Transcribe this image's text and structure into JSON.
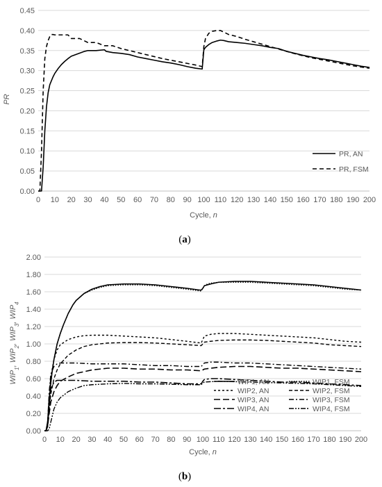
{
  "chart_data": [
    {
      "panel_label": "(a)",
      "type": "line",
      "xlabel": "Cycle, n",
      "ylabel": "PR",
      "xlim": [
        0,
        200
      ],
      "ylim": [
        0,
        0.45
      ],
      "xticks": [
        0,
        10,
        20,
        30,
        40,
        50,
        60,
        70,
        80,
        90,
        100,
        110,
        120,
        130,
        140,
        150,
        160,
        170,
        180,
        190,
        200
      ],
      "xtick_labels": [
        "0",
        "10",
        "20",
        "30",
        "40",
        "50",
        "60",
        "70",
        "80",
        "90",
        "100",
        "110",
        "120",
        "130",
        "140",
        "150",
        "160",
        "170",
        "180",
        "190",
        "200"
      ],
      "yticks": [
        0,
        0.05,
        0.1,
        0.15,
        0.2,
        0.25,
        0.3,
        0.35,
        0.4,
        0.45
      ],
      "ytick_labels": [
        "0.00",
        "0.05",
        "0.10",
        "0.15",
        "0.20",
        "0.25",
        "0.30",
        "0.35",
        "0.40",
        "0.45"
      ],
      "grid": "horizontal",
      "legend_position": "bottom-right",
      "series": [
        {
          "name": "PR, AN",
          "style": "solid",
          "x": [
            0,
            1,
            2,
            3,
            4,
            5,
            6,
            7,
            8,
            9,
            10,
            12,
            14,
            16,
            18,
            20,
            22,
            24,
            26,
            28,
            30,
            35,
            40,
            41,
            45,
            50,
            55,
            60,
            65,
            70,
            75,
            80,
            85,
            90,
            95,
            99,
            100,
            101,
            103,
            105,
            108,
            110,
            112,
            115,
            120,
            125,
            130,
            135,
            140,
            145,
            150,
            155,
            160,
            165,
            170,
            175,
            180,
            185,
            190,
            195,
            200
          ],
          "y": [
            0,
            0,
            0,
            0.06,
            0.15,
            0.21,
            0.245,
            0.265,
            0.275,
            0.285,
            0.293,
            0.305,
            0.315,
            0.323,
            0.33,
            0.336,
            0.339,
            0.342,
            0.345,
            0.348,
            0.35,
            0.35,
            0.352,
            0.348,
            0.345,
            0.343,
            0.34,
            0.334,
            0.33,
            0.326,
            0.322,
            0.319,
            0.315,
            0.31,
            0.306,
            0.304,
            0.352,
            0.358,
            0.365,
            0.37,
            0.374,
            0.376,
            0.375,
            0.372,
            0.37,
            0.368,
            0.365,
            0.362,
            0.358,
            0.355,
            0.348,
            0.343,
            0.338,
            0.334,
            0.33,
            0.327,
            0.323,
            0.319,
            0.315,
            0.311,
            0.308
          ]
        },
        {
          "name": "PR, FSM",
          "style": "dashed",
          "x": [
            0,
            1,
            2,
            3,
            4,
            5,
            6,
            7,
            8,
            9,
            10,
            12,
            14,
            16,
            18,
            20,
            25,
            30,
            35,
            40,
            45,
            50,
            55,
            60,
            65,
            70,
            75,
            80,
            85,
            90,
            95,
            99,
            100,
            101,
            103,
            105,
            108,
            110,
            115,
            120,
            125,
            130,
            135,
            140,
            145,
            150,
            155,
            160,
            165,
            170,
            175,
            180,
            185,
            190,
            195,
            200
          ],
          "y": [
            0,
            0,
            0.1,
            0.25,
            0.33,
            0.36,
            0.375,
            0.385,
            0.39,
            0.39,
            0.389,
            0.389,
            0.389,
            0.389,
            0.389,
            0.38,
            0.38,
            0.37,
            0.37,
            0.362,
            0.362,
            0.355,
            0.35,
            0.345,
            0.34,
            0.335,
            0.33,
            0.326,
            0.322,
            0.318,
            0.314,
            0.31,
            0.36,
            0.38,
            0.393,
            0.398,
            0.4,
            0.4,
            0.39,
            0.385,
            0.378,
            0.372,
            0.366,
            0.36,
            0.354,
            0.348,
            0.342,
            0.337,
            0.332,
            0.328,
            0.324,
            0.32,
            0.316,
            0.312,
            0.309,
            0.306
          ]
        }
      ]
    },
    {
      "panel_label": "(b)",
      "type": "line",
      "xlabel": "Cycle, n",
      "ylabel_parts": [
        "WIP",
        "1",
        ", WIP",
        "2",
        ", WIP",
        "3",
        ", WIP",
        "4"
      ],
      "xlim": [
        0,
        200
      ],
      "ylim": [
        0,
        2.0
      ],
      "xticks": [
        0,
        10,
        20,
        30,
        40,
        50,
        60,
        70,
        80,
        90,
        100,
        110,
        120,
        130,
        140,
        150,
        160,
        170,
        180,
        190,
        200
      ],
      "xtick_labels": [
        "0",
        "10",
        "20",
        "30",
        "40",
        "50",
        "60",
        "70",
        "80",
        "90",
        "100",
        "110",
        "120",
        "130",
        "140",
        "150",
        "160",
        "170",
        "180",
        "190",
        "200"
      ],
      "yticks": [
        0,
        0.2,
        0.4,
        0.6,
        0.8,
        1.0,
        1.2,
        1.4,
        1.6,
        1.8,
        2.0
      ],
      "ytick_labels": [
        "0.00",
        "0.20",
        "0.40",
        "0.60",
        "0.80",
        "1.00",
        "1.20",
        "1.40",
        "1.60",
        "1.80",
        "2.00"
      ],
      "grid": "horizontal",
      "legend_position": "bottom-right",
      "series": [
        {
          "name": "WIP1, AN",
          "style": "solid",
          "x": [
            0,
            1,
            2,
            3,
            4,
            5,
            6,
            8,
            10,
            12,
            15,
            18,
            20,
            25,
            30,
            35,
            40,
            50,
            60,
            70,
            80,
            90,
            98,
            99,
            100,
            101,
            103,
            105,
            110,
            120,
            130,
            140,
            150,
            160,
            170,
            180,
            190,
            200
          ],
          "y": [
            0,
            0,
            0.1,
            0.35,
            0.55,
            0.7,
            0.82,
            1.0,
            1.12,
            1.22,
            1.35,
            1.45,
            1.5,
            1.58,
            1.63,
            1.66,
            1.68,
            1.69,
            1.69,
            1.68,
            1.66,
            1.64,
            1.62,
            1.62,
            1.64,
            1.67,
            1.68,
            1.69,
            1.71,
            1.72,
            1.72,
            1.71,
            1.7,
            1.69,
            1.68,
            1.66,
            1.64,
            1.62
          ]
        },
        {
          "name": "WIP1, FSM",
          "style": "dotted",
          "x": [
            0,
            1,
            2,
            3,
            4,
            5,
            6,
            8,
            10,
            12,
            15,
            18,
            20,
            25,
            30,
            35,
            40,
            50,
            60,
            70,
            80,
            90,
            98,
            99,
            100,
            101,
            103,
            105,
            110,
            120,
            130,
            140,
            150,
            160,
            170,
            180,
            190,
            200
          ],
          "y": [
            0,
            0,
            0.1,
            0.35,
            0.55,
            0.7,
            0.82,
            1.0,
            1.12,
            1.22,
            1.35,
            1.45,
            1.5,
            1.58,
            1.62,
            1.65,
            1.67,
            1.68,
            1.68,
            1.67,
            1.65,
            1.63,
            1.61,
            1.61,
            1.64,
            1.67,
            1.69,
            1.7,
            1.71,
            1.71,
            1.71,
            1.7,
            1.69,
            1.68,
            1.67,
            1.65,
            1.63,
            1.62
          ]
        },
        {
          "name": "WIP2, AN",
          "style": "short-dash",
          "x": [
            0,
            1,
            2,
            3,
            4,
            6,
            8,
            10,
            15,
            20,
            25,
            30,
            35,
            40,
            50,
            60,
            70,
            80,
            90,
            99,
            100,
            101,
            105,
            110,
            120,
            130,
            140,
            150,
            160,
            170,
            180,
            190,
            200
          ],
          "y": [
            0,
            0,
            0.1,
            0.4,
            0.62,
            0.82,
            0.93,
            0.99,
            1.05,
            1.08,
            1.095,
            1.1,
            1.1,
            1.1,
            1.09,
            1.08,
            1.07,
            1.05,
            1.03,
            1.01,
            1.05,
            1.09,
            1.11,
            1.12,
            1.12,
            1.11,
            1.1,
            1.09,
            1.08,
            1.07,
            1.05,
            1.03,
            1.02
          ]
        },
        {
          "name": "WIP2, FSM",
          "style": "medium-dash",
          "x": [
            0,
            1,
            2,
            3,
            4,
            6,
            8,
            10,
            15,
            20,
            25,
            30,
            35,
            40,
            50,
            60,
            70,
            80,
            90,
            99,
            100,
            101,
            105,
            110,
            120,
            130,
            140,
            150,
            160,
            170,
            180,
            190,
            200
          ],
          "y": [
            0,
            0,
            0.05,
            0.25,
            0.42,
            0.6,
            0.7,
            0.77,
            0.87,
            0.93,
            0.97,
            0.99,
            1.0,
            1.01,
            1.015,
            1.015,
            1.01,
            1.0,
            0.99,
            0.98,
            1.0,
            1.02,
            1.03,
            1.04,
            1.045,
            1.045,
            1.04,
            1.03,
            1.02,
            1.01,
            0.99,
            0.98,
            0.97
          ]
        },
        {
          "name": "WIP3, AN",
          "style": "long-dash",
          "x": [
            0,
            1,
            2,
            3,
            4,
            6,
            8,
            10,
            15,
            20,
            25,
            30,
            35,
            40,
            50,
            60,
            70,
            80,
            90,
            99,
            100,
            101,
            105,
            110,
            120,
            130,
            140,
            150,
            160,
            170,
            180,
            190,
            200
          ],
          "y": [
            0,
            0,
            0.05,
            0.2,
            0.33,
            0.45,
            0.52,
            0.57,
            0.62,
            0.66,
            0.68,
            0.7,
            0.71,
            0.72,
            0.72,
            0.71,
            0.71,
            0.7,
            0.7,
            0.69,
            0.7,
            0.71,
            0.72,
            0.73,
            0.74,
            0.74,
            0.73,
            0.72,
            0.72,
            0.71,
            0.7,
            0.69,
            0.68
          ]
        },
        {
          "name": "WIP3, FSM",
          "style": "dash-dot",
          "x": [
            0,
            1,
            2,
            3,
            4,
            6,
            8,
            10,
            15,
            20,
            25,
            30,
            40,
            50,
            60,
            70,
            80,
            90,
            99,
            100,
            101,
            105,
            110,
            120,
            130,
            140,
            150,
            160,
            170,
            180,
            190,
            200
          ],
          "y": [
            0,
            0,
            0.1,
            0.45,
            0.65,
            0.74,
            0.77,
            0.78,
            0.78,
            0.78,
            0.775,
            0.77,
            0.77,
            0.77,
            0.76,
            0.75,
            0.75,
            0.74,
            0.74,
            0.76,
            0.78,
            0.79,
            0.79,
            0.78,
            0.78,
            0.77,
            0.76,
            0.75,
            0.74,
            0.73,
            0.72,
            0.71
          ]
        },
        {
          "name": "WIP4, AN",
          "style": "long-dash-dot",
          "x": [
            0,
            1,
            2,
            3,
            4,
            6,
            8,
            10,
            15,
            20,
            25,
            30,
            40,
            50,
            60,
            70,
            80,
            90,
            99,
            100,
            101,
            105,
            110,
            120,
            130,
            140,
            150,
            160,
            170,
            180,
            190,
            200
          ],
          "y": [
            0,
            0,
            0.05,
            0.3,
            0.48,
            0.56,
            0.58,
            0.58,
            0.58,
            0.58,
            0.575,
            0.57,
            0.57,
            0.57,
            0.56,
            0.56,
            0.55,
            0.54,
            0.54,
            0.57,
            0.59,
            0.6,
            0.6,
            0.59,
            0.58,
            0.57,
            0.56,
            0.56,
            0.55,
            0.54,
            0.53,
            0.52
          ]
        },
        {
          "name": "WIP4, FSM",
          "style": "dash-dot-dot",
          "x": [
            0,
            1,
            2,
            3,
            4,
            6,
            8,
            10,
            15,
            20,
            25,
            30,
            40,
            50,
            60,
            70,
            80,
            90,
            99,
            100,
            101,
            105,
            110,
            120,
            130,
            140,
            150,
            160,
            170,
            180,
            190,
            200
          ],
          "y": [
            0,
            0,
            0,
            0.02,
            0.1,
            0.25,
            0.33,
            0.38,
            0.45,
            0.49,
            0.52,
            0.53,
            0.54,
            0.545,
            0.54,
            0.54,
            0.535,
            0.53,
            0.53,
            0.55,
            0.56,
            0.565,
            0.57,
            0.565,
            0.56,
            0.555,
            0.55,
            0.545,
            0.54,
            0.53,
            0.52,
            0.51
          ]
        }
      ]
    }
  ]
}
